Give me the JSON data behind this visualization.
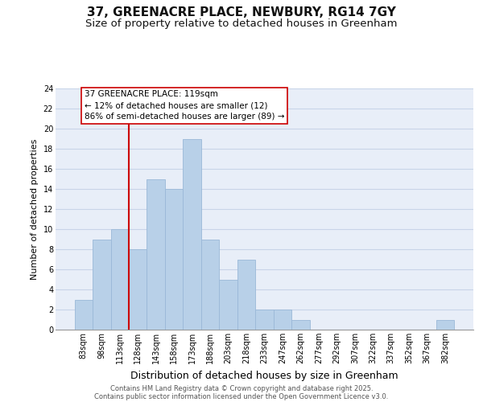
{
  "title": "37, GREENACRE PLACE, NEWBURY, RG14 7GY",
  "subtitle": "Size of property relative to detached houses in Greenham",
  "xlabel": "Distribution of detached houses by size in Greenham",
  "ylabel": "Number of detached properties",
  "categories": [
    "83sqm",
    "98sqm",
    "113sqm",
    "128sqm",
    "143sqm",
    "158sqm",
    "173sqm",
    "188sqm",
    "203sqm",
    "218sqm",
    "233sqm",
    "247sqm",
    "262sqm",
    "277sqm",
    "292sqm",
    "307sqm",
    "322sqm",
    "337sqm",
    "352sqm",
    "367sqm",
    "382sqm"
  ],
  "values": [
    3,
    9,
    10,
    8,
    15,
    14,
    19,
    9,
    5,
    7,
    2,
    2,
    1,
    0,
    0,
    0,
    0,
    0,
    0,
    0,
    1
  ],
  "bar_color": "#b8d0e8",
  "bar_edge_color": "#9ab8d8",
  "vline_color": "#cc0000",
  "vline_x_index": 2.5,
  "annotation_text": "37 GREENACRE PLACE: 119sqm\n← 12% of detached houses are smaller (12)\n86% of semi-detached houses are larger (89) →",
  "ylim": [
    0,
    24
  ],
  "yticks": [
    0,
    2,
    4,
    6,
    8,
    10,
    12,
    14,
    16,
    18,
    20,
    22,
    24
  ],
  "grid_color": "#c8d4e8",
  "background_color": "#e8eef8",
  "footer_line1": "Contains HM Land Registry data © Crown copyright and database right 2025.",
  "footer_line2": "Contains public sector information licensed under the Open Government Licence v3.0.",
  "title_fontsize": 11,
  "subtitle_fontsize": 9.5,
  "xlabel_fontsize": 9,
  "ylabel_fontsize": 8,
  "tick_fontsize": 7,
  "ann_fontsize": 7.5,
  "footer_fontsize": 6
}
